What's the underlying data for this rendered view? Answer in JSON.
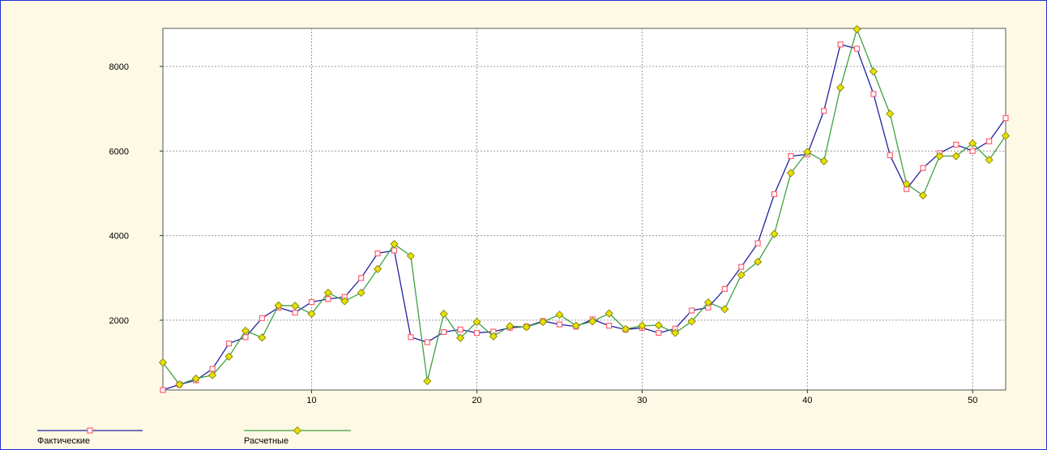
{
  "chart_data": {
    "type": "line",
    "title": "",
    "xlabel": "",
    "ylabel": "",
    "xlim": [
      1,
      52
    ],
    "ylim": [
      350,
      8900
    ],
    "x_ticks": [
      10,
      20,
      30,
      40,
      50
    ],
    "y_ticks": [
      2000,
      4000,
      6000,
      8000
    ],
    "grid": true,
    "legend_position": "bottom-left",
    "x": [
      1,
      2,
      3,
      4,
      5,
      6,
      7,
      8,
      9,
      10,
      11,
      12,
      13,
      14,
      15,
      16,
      17,
      18,
      19,
      20,
      21,
      22,
      23,
      24,
      25,
      26,
      27,
      28,
      29,
      30,
      31,
      32,
      33,
      34,
      35,
      36,
      37,
      38,
      39,
      40,
      41,
      42,
      43,
      44,
      45,
      46,
      47,
      48,
      49,
      50,
      51,
      52
    ],
    "series": [
      {
        "name": "Фактические",
        "line_color": "#2020a0",
        "marker": "square",
        "marker_color": "#ff6070",
        "values": [
          350,
          480,
          580,
          850,
          1450,
          1600,
          2050,
          2300,
          2180,
          2430,
          2500,
          2550,
          3000,
          3580,
          3650,
          1600,
          1480,
          1720,
          1780,
          1700,
          1730,
          1820,
          1850,
          1980,
          1900,
          1850,
          2020,
          1870,
          1780,
          1820,
          1700,
          1800,
          2230,
          2300,
          2740,
          3260,
          3820,
          4980,
          5880,
          5920,
          6950,
          8520,
          8420,
          7350,
          5900,
          5100,
          5600,
          5950,
          6150,
          6000,
          6230,
          6780
        ]
      },
      {
        "name": "Расчетные",
        "line_color": "#40a040",
        "marker": "diamond",
        "marker_color": "#e8e000",
        "values": [
          1000,
          480,
          620,
          700,
          1140,
          1750,
          1590,
          2350,
          2340,
          2150,
          2650,
          2450,
          2650,
          3210,
          3800,
          3520,
          560,
          2150,
          1580,
          1960,
          1620,
          1860,
          1840,
          1960,
          2130,
          1870,
          1970,
          2160,
          1790,
          1870,
          1880,
          1700,
          1970,
          2420,
          2260,
          3070,
          3380,
          4040,
          5480,
          5980,
          5760,
          7500,
          8880,
          7880,
          6880,
          5220,
          4950,
          5880,
          5880,
          6180,
          5790,
          6360
        ]
      }
    ]
  }
}
